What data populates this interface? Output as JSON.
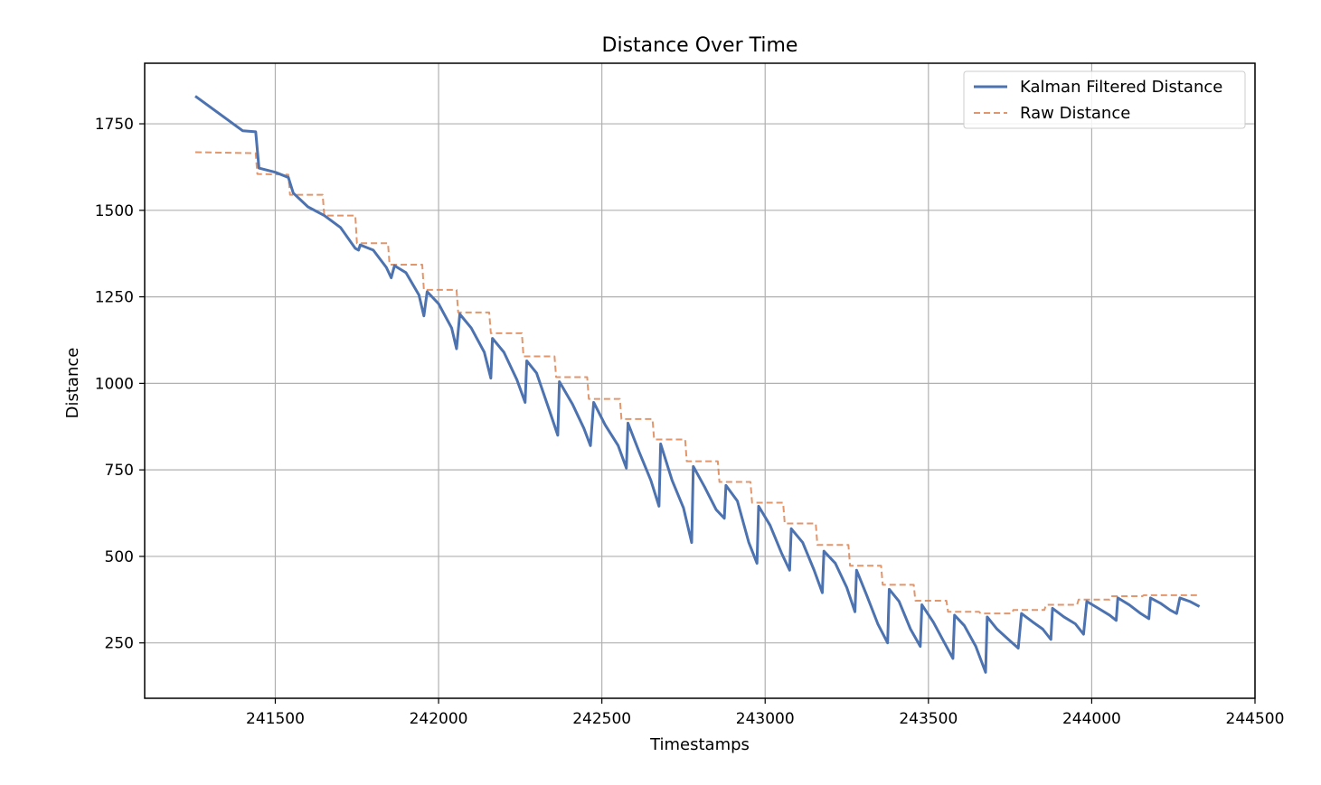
{
  "chart_data": {
    "type": "line",
    "title": "Distance Over Time",
    "xlabel": "Timestamps",
    "ylabel": "Distance",
    "xlim": [
      241100,
      244500
    ],
    "ylim": [
      90,
      1925
    ],
    "xticks": [
      241500,
      242000,
      242500,
      243000,
      243500,
      244000,
      244500
    ],
    "yticks": [
      250,
      500,
      750,
      1000,
      1250,
      1500,
      1750
    ],
    "grid": true,
    "legend_position": "top-right",
    "series": [
      {
        "name": "Kalman Filtered Distance",
        "color": "#4c72b0",
        "style": "solid",
        "points": [
          [
            241255,
            1830
          ],
          [
            241400,
            1730
          ],
          [
            241440,
            1727
          ],
          [
            241450,
            1622
          ],
          [
            241500,
            1610
          ],
          [
            241540,
            1595
          ],
          [
            241555,
            1550
          ],
          [
            241600,
            1510
          ],
          [
            241650,
            1485
          ],
          [
            241700,
            1450
          ],
          [
            241745,
            1390
          ],
          [
            241755,
            1385
          ],
          [
            241760,
            1400
          ],
          [
            241800,
            1385
          ],
          [
            241840,
            1335
          ],
          [
            241855,
            1305
          ],
          [
            241865,
            1340
          ],
          [
            241900,
            1320
          ],
          [
            241940,
            1255
          ],
          [
            241955,
            1195
          ],
          [
            241965,
            1265
          ],
          [
            242000,
            1230
          ],
          [
            242040,
            1160
          ],
          [
            242055,
            1100
          ],
          [
            242065,
            1200
          ],
          [
            242100,
            1160
          ],
          [
            242140,
            1090
          ],
          [
            242160,
            1015
          ],
          [
            242165,
            1130
          ],
          [
            242200,
            1090
          ],
          [
            242240,
            1010
          ],
          [
            242265,
            945
          ],
          [
            242270,
            1065
          ],
          [
            242300,
            1030
          ],
          [
            242340,
            920
          ],
          [
            242365,
            850
          ],
          [
            242370,
            1005
          ],
          [
            242410,
            940
          ],
          [
            242445,
            870
          ],
          [
            242465,
            820
          ],
          [
            242475,
            945
          ],
          [
            242510,
            880
          ],
          [
            242550,
            820
          ],
          [
            242575,
            755
          ],
          [
            242580,
            885
          ],
          [
            242615,
            800
          ],
          [
            242650,
            720
          ],
          [
            242675,
            645
          ],
          [
            242680,
            825
          ],
          [
            242715,
            720
          ],
          [
            242750,
            640
          ],
          [
            242775,
            540
          ],
          [
            242780,
            760
          ],
          [
            242815,
            700
          ],
          [
            242850,
            635
          ],
          [
            242875,
            610
          ],
          [
            242880,
            705
          ],
          [
            242915,
            660
          ],
          [
            242950,
            540
          ],
          [
            242975,
            480
          ],
          [
            242980,
            645
          ],
          [
            243015,
            590
          ],
          [
            243050,
            510
          ],
          [
            243075,
            460
          ],
          [
            243080,
            580
          ],
          [
            243115,
            540
          ],
          [
            243150,
            460
          ],
          [
            243175,
            395
          ],
          [
            243180,
            515
          ],
          [
            243215,
            480
          ],
          [
            243250,
            410
          ],
          [
            243275,
            340
          ],
          [
            243280,
            460
          ],
          [
            243310,
            390
          ],
          [
            243345,
            305
          ],
          [
            243375,
            250
          ],
          [
            243380,
            405
          ],
          [
            243410,
            370
          ],
          [
            243445,
            290
          ],
          [
            243475,
            240
          ],
          [
            243480,
            360
          ],
          [
            243515,
            310
          ],
          [
            243555,
            240
          ],
          [
            243575,
            205
          ],
          [
            243580,
            330
          ],
          [
            243610,
            300
          ],
          [
            243645,
            240
          ],
          [
            243675,
            165
          ],
          [
            243680,
            325
          ],
          [
            243710,
            290
          ],
          [
            243745,
            260
          ],
          [
            243775,
            235
          ],
          [
            243785,
            335
          ],
          [
            243820,
            310
          ],
          [
            243850,
            290
          ],
          [
            243875,
            260
          ],
          [
            243880,
            350
          ],
          [
            243915,
            325
          ],
          [
            243950,
            305
          ],
          [
            243975,
            275
          ],
          [
            243985,
            370
          ],
          [
            244020,
            350
          ],
          [
            244055,
            330
          ],
          [
            244075,
            315
          ],
          [
            244080,
            380
          ],
          [
            244115,
            360
          ],
          [
            244150,
            335
          ],
          [
            244175,
            320
          ],
          [
            244180,
            380
          ],
          [
            244210,
            365
          ],
          [
            244240,
            345
          ],
          [
            244260,
            335
          ],
          [
            244270,
            380
          ],
          [
            244300,
            370
          ],
          [
            244330,
            355
          ]
        ]
      },
      {
        "name": "Raw Distance",
        "color": "#dd8452",
        "style": "dashed",
        "points": [
          [
            241255,
            1668
          ],
          [
            241440,
            1665
          ],
          [
            241445,
            1605
          ],
          [
            241540,
            1603
          ],
          [
            241545,
            1545
          ],
          [
            241645,
            1545
          ],
          [
            241650,
            1485
          ],
          [
            241745,
            1485
          ],
          [
            241750,
            1405
          ],
          [
            241845,
            1405
          ],
          [
            241850,
            1343
          ],
          [
            241950,
            1343
          ],
          [
            241955,
            1270
          ],
          [
            242055,
            1270
          ],
          [
            242060,
            1205
          ],
          [
            242155,
            1205
          ],
          [
            242160,
            1145
          ],
          [
            242255,
            1145
          ],
          [
            242260,
            1078
          ],
          [
            242355,
            1078
          ],
          [
            242360,
            1018
          ],
          [
            242455,
            1018
          ],
          [
            242460,
            955
          ],
          [
            242555,
            955
          ],
          [
            242560,
            897
          ],
          [
            242655,
            897
          ],
          [
            242660,
            838
          ],
          [
            242755,
            838
          ],
          [
            242760,
            775
          ],
          [
            242855,
            775
          ],
          [
            242860,
            715
          ],
          [
            242955,
            715
          ],
          [
            242960,
            655
          ],
          [
            243055,
            655
          ],
          [
            243060,
            595
          ],
          [
            243155,
            595
          ],
          [
            243160,
            533
          ],
          [
            243255,
            533
          ],
          [
            243260,
            473
          ],
          [
            243355,
            473
          ],
          [
            243360,
            418
          ],
          [
            243455,
            418
          ],
          [
            243460,
            372
          ],
          [
            243555,
            372
          ],
          [
            243560,
            340
          ],
          [
            243655,
            340
          ],
          [
            243660,
            335
          ],
          [
            243755,
            335
          ],
          [
            243760,
            345
          ],
          [
            243855,
            345
          ],
          [
            243860,
            360
          ],
          [
            243955,
            360
          ],
          [
            243960,
            375
          ],
          [
            244055,
            375
          ],
          [
            244060,
            385
          ],
          [
            244155,
            385
          ],
          [
            244160,
            388
          ],
          [
            244330,
            388
          ]
        ]
      }
    ]
  }
}
